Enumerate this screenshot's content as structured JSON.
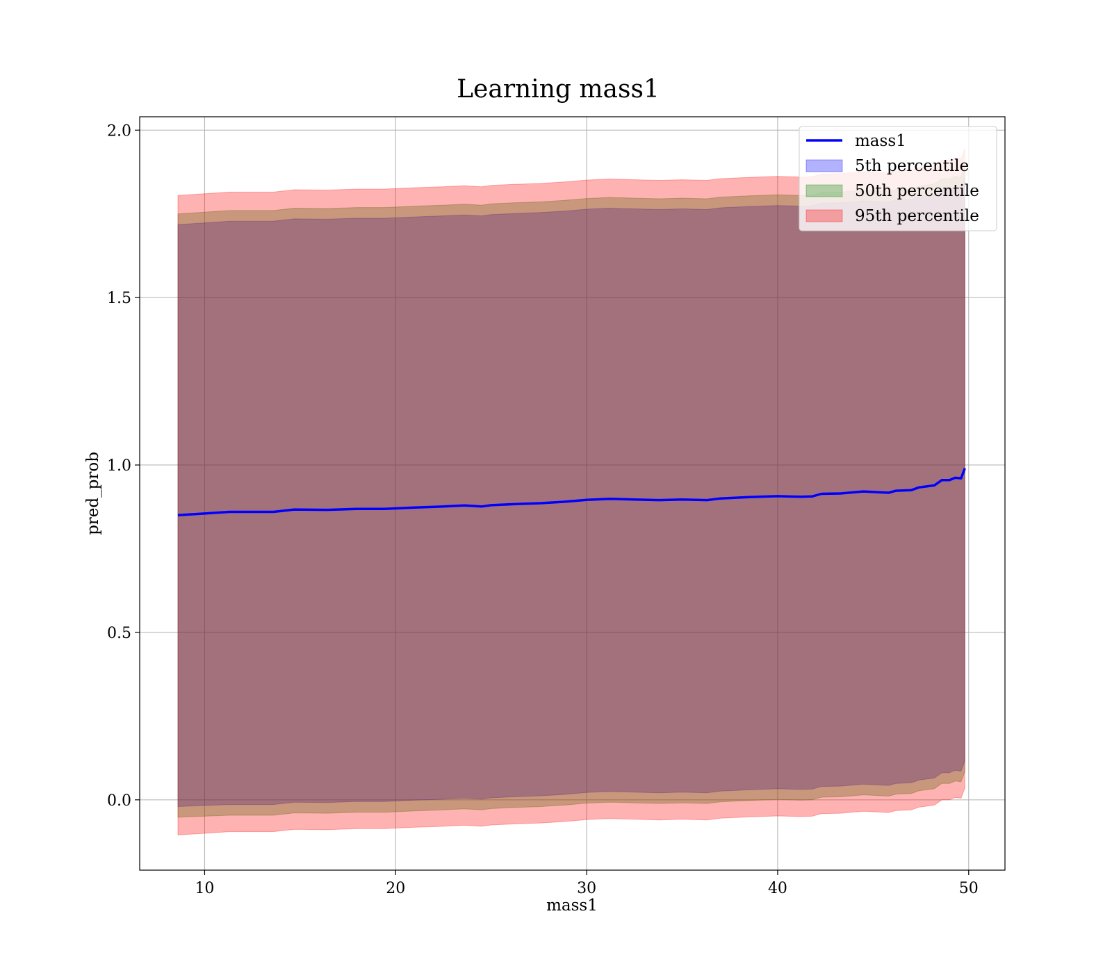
{
  "chart_data": {
    "type": "line",
    "title": "Learning mass1",
    "xlabel": "mass1",
    "ylabel": "pred_prob",
    "xlim": [
      6.6,
      51.9
    ],
    "ylim": [
      -0.21,
      2.04
    ],
    "xticks": [
      10,
      20,
      30,
      40,
      50
    ],
    "yticks": [
      0.0,
      0.5,
      1.0,
      1.5,
      2.0
    ],
    "xtick_labels": [
      "10",
      "20",
      "30",
      "40",
      "50"
    ],
    "ytick_labels": [
      "0.0",
      "0.5",
      "1.0",
      "1.5",
      "2.0"
    ],
    "grid": true,
    "legend_position": "upper right",
    "x": [
      8.6,
      10.0,
      11.3,
      12.5,
      13.6,
      14.7,
      16.4,
      18.0,
      19.4,
      21.0,
      22.5,
      23.6,
      24.5,
      25.0,
      26.2,
      27.6,
      28.8,
      30.0,
      31.2,
      32.5,
      33.8,
      35.0,
      36.3,
      37.0,
      38.5,
      40.0,
      41.2,
      41.8,
      42.3,
      43.3,
      44.5,
      45.8,
      46.2,
      47.0,
      47.4,
      48.2,
      48.6,
      49.0,
      49.3,
      49.6,
      49.8
    ],
    "series": [
      {
        "name": "mass1",
        "color": "#0000ff",
        "values": [
          0.85,
          0.855,
          0.86,
          0.86,
          0.86,
          0.867,
          0.866,
          0.869,
          0.869,
          0.873,
          0.876,
          0.879,
          0.876,
          0.88,
          0.883,
          0.886,
          0.89,
          0.896,
          0.899,
          0.897,
          0.895,
          0.897,
          0.895,
          0.9,
          0.904,
          0.907,
          0.905,
          0.906,
          0.914,
          0.915,
          0.921,
          0.917,
          0.923,
          0.925,
          0.933,
          0.939,
          0.955,
          0.955,
          0.962,
          0.96,
          0.99
        ]
      },
      {
        "name": "5th percentile",
        "color": "#0000ff",
        "lower": [
          -0.02,
          -0.017,
          -0.014,
          -0.014,
          -0.014,
          -0.007,
          -0.008,
          -0.005,
          -0.005,
          -0.001,
          0.002,
          0.005,
          0.002,
          0.006,
          0.009,
          0.012,
          0.016,
          0.022,
          0.025,
          0.023,
          0.021,
          0.023,
          0.021,
          0.026,
          0.03,
          0.033,
          0.031,
          0.032,
          0.04,
          0.041,
          0.047,
          0.043,
          0.049,
          0.051,
          0.059,
          0.065,
          0.081,
          0.081,
          0.088,
          0.086,
          0.116
        ],
        "upper": [
          1.718,
          1.723,
          1.728,
          1.728,
          1.728,
          1.735,
          1.734,
          1.737,
          1.737,
          1.741,
          1.744,
          1.747,
          1.744,
          1.748,
          1.751,
          1.754,
          1.758,
          1.764,
          1.767,
          1.765,
          1.763,
          1.765,
          1.763,
          1.768,
          1.772,
          1.775,
          1.773,
          1.774,
          1.782,
          1.783,
          1.789,
          1.785,
          1.791,
          1.793,
          1.801,
          1.807,
          1.823,
          1.823,
          1.83,
          1.828,
          1.858
        ]
      },
      {
        "name": "50th percentile",
        "color": "#008000",
        "lower": [
          -0.052,
          -0.049,
          -0.046,
          -0.046,
          -0.046,
          -0.039,
          -0.04,
          -0.037,
          -0.037,
          -0.033,
          -0.03,
          -0.027,
          -0.03,
          -0.026,
          -0.023,
          -0.02,
          -0.016,
          -0.01,
          -0.007,
          -0.009,
          -0.011,
          -0.009,
          -0.011,
          -0.006,
          -0.002,
          0.001,
          -0.001,
          0.0,
          0.008,
          0.009,
          0.015,
          0.011,
          0.017,
          0.019,
          0.027,
          0.033,
          0.049,
          0.049,
          0.056,
          0.054,
          0.084
        ],
        "upper": [
          1.75,
          1.755,
          1.76,
          1.76,
          1.76,
          1.767,
          1.766,
          1.769,
          1.769,
          1.773,
          1.776,
          1.779,
          1.776,
          1.78,
          1.783,
          1.786,
          1.79,
          1.796,
          1.799,
          1.797,
          1.795,
          1.797,
          1.795,
          1.8,
          1.804,
          1.807,
          1.805,
          1.806,
          1.814,
          1.815,
          1.821,
          1.817,
          1.823,
          1.825,
          1.833,
          1.839,
          1.855,
          1.855,
          1.862,
          1.86,
          1.89
        ]
      },
      {
        "name": "95th percentile",
        "color": "#ff0000",
        "lower": [
          -0.105,
          -0.1,
          -0.095,
          -0.095,
          -0.095,
          -0.088,
          -0.089,
          -0.086,
          -0.086,
          -0.082,
          -0.079,
          -0.076,
          -0.079,
          -0.075,
          -0.072,
          -0.069,
          -0.065,
          -0.059,
          -0.056,
          -0.058,
          -0.06,
          -0.058,
          -0.06,
          -0.055,
          -0.051,
          -0.048,
          -0.05,
          -0.049,
          -0.041,
          -0.04,
          -0.034,
          -0.038,
          -0.032,
          -0.03,
          -0.022,
          -0.016,
          0.0,
          0.0,
          0.007,
          0.005,
          0.035
        ],
        "upper": [
          1.805,
          1.81,
          1.815,
          1.815,
          1.815,
          1.822,
          1.821,
          1.824,
          1.824,
          1.828,
          1.831,
          1.834,
          1.831,
          1.835,
          1.838,
          1.841,
          1.845,
          1.851,
          1.854,
          1.852,
          1.85,
          1.852,
          1.85,
          1.855,
          1.859,
          1.862,
          1.86,
          1.861,
          1.869,
          1.87,
          1.876,
          1.872,
          1.878,
          1.88,
          1.888,
          1.894,
          1.91,
          1.91,
          1.917,
          1.915,
          1.945
        ]
      }
    ]
  }
}
